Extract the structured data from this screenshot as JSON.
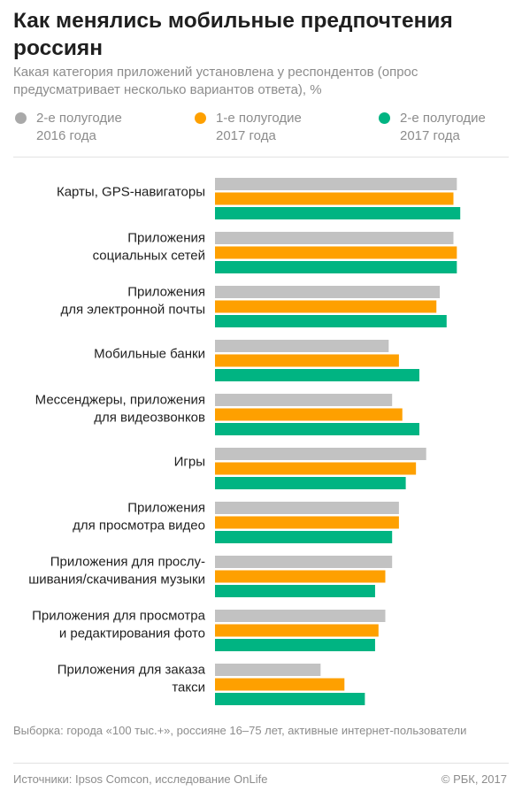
{
  "title": "Как менялись мобильные предпочтения россиян",
  "subtitle": "Какая категория приложений установлена у респондентов (опрос предусматривает несколько вариантов ответа), %",
  "legend": [
    {
      "label": "2-е полугодие\n2016 года",
      "color": "#a9a9a9"
    },
    {
      "label": "1-е полугодие\n2017 года",
      "color": "#fea000"
    },
    {
      "label": "2-е полугодие\n2017 года",
      "color": "#00b482"
    }
  ],
  "chart_data": {
    "type": "bar",
    "orientation": "horizontal",
    "categories": [
      "Карты, GPS-навигаторы",
      "Приложения\nсоциальных сетей",
      "Приложения\nдля электронной почты",
      "Мобильные банки",
      "Мессенджеры, приложения\nдля видеозвонков",
      "Игры",
      "Приложения\nдля просмотра видео",
      "Приложения для прослу-\nшивания/скачивания музыки",
      "Приложения для просмотра\nи редактирования фото",
      "Приложения для заказа\nтакси"
    ],
    "series": [
      {
        "name": "2-е полугодие 2016 года",
        "color": "#c2c2c2",
        "values": [
          71,
          70,
          66,
          51,
          52,
          62,
          54,
          52,
          50,
          31
        ]
      },
      {
        "name": "1-е полугодие 2017 года",
        "color": "#fea000",
        "values": [
          70,
          71,
          65,
          54,
          55,
          59,
          54,
          50,
          48,
          38
        ]
      },
      {
        "name": "2-е полугодие 2017 года",
        "color": "#00b482",
        "values": [
          72,
          71,
          68,
          60,
          60,
          56,
          52,
          47,
          47,
          44
        ]
      }
    ],
    "xlim": [
      0,
      80
    ],
    "grid": false,
    "legend_position": "top"
  },
  "footnote": "Выборка: города «100 тыс.+», россияне 16–75 лет, активные интернет-пользователи",
  "sources": "Источники: Ipsos Comcon, исследование OnLife",
  "copyright": "© РБК, 2017"
}
